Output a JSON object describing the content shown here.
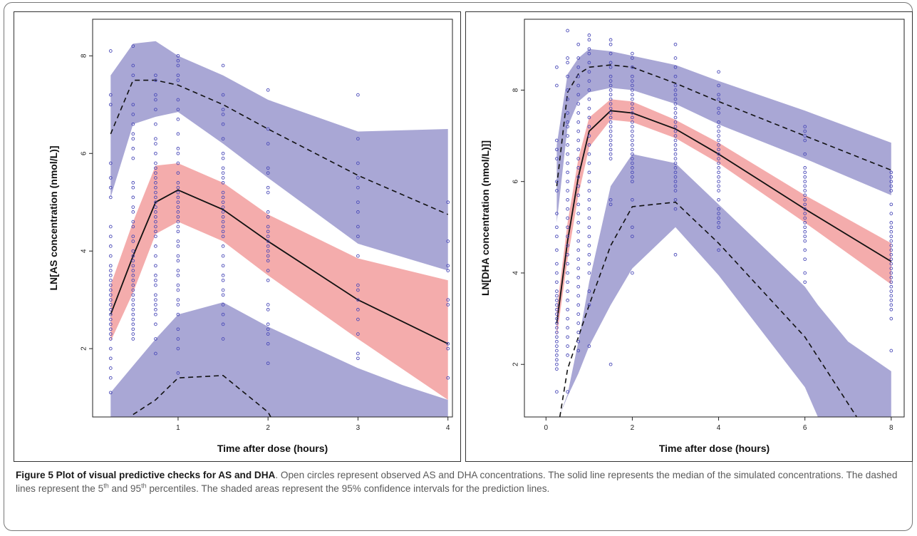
{
  "chart_data": [
    {
      "type": "line",
      "ylabel": "LN[AS concentration (nmol/L)]",
      "xlabel": "Time after dose (hours)",
      "xlim": [
        0.05,
        4.05
      ],
      "ylim": [
        0.6,
        8.75
      ],
      "xticks": [
        "1",
        "2",
        "3",
        "4"
      ],
      "yticks": [
        "2",
        "4",
        "6",
        "8"
      ],
      "grid": false,
      "colors": {
        "outer_ci": "#a9a7d5",
        "inner_ci": "#f4acac",
        "overlap": "#b87bbc",
        "points": "#4a4ab8"
      },
      "time_points": [
        0.25,
        0.5,
        0.75,
        1,
        1.5,
        2,
        3,
        4
      ],
      "series": [
        {
          "role": "median",
          "x": [
            0.25,
            0.5,
            0.75,
            1,
            1.5,
            2,
            3,
            4
          ],
          "y": [
            2.7,
            3.9,
            5.0,
            5.25,
            4.85,
            4.2,
            3.0,
            2.1
          ]
        },
        {
          "role": "p95",
          "x": [
            0.25,
            0.5,
            0.75,
            1,
            1.5,
            2,
            3,
            4
          ],
          "y": [
            6.4,
            7.5,
            7.5,
            7.4,
            7.0,
            6.5,
            5.55,
            4.75
          ]
        },
        {
          "role": "p5",
          "x": [
            0.5,
            0.75,
            1,
            1.5,
            2,
            2.03
          ],
          "y": [
            0.65,
            0.95,
            1.4,
            1.45,
            0.7,
            0.6
          ]
        }
      ],
      "bands": [
        {
          "role": "ci_upper",
          "x": [
            0.25,
            0.5,
            0.75,
            1,
            1.5,
            2,
            3,
            4
          ],
          "low": [
            5.1,
            6.6,
            6.75,
            6.85,
            6.2,
            5.5,
            4.15,
            3.6
          ],
          "high": [
            7.6,
            8.25,
            8.3,
            8.0,
            7.6,
            7.1,
            6.45,
            6.5
          ]
        },
        {
          "role": "ci_median",
          "x": [
            0.25,
            0.5,
            0.75,
            1,
            1.5,
            2,
            3,
            4
          ],
          "low": [
            2.15,
            3.15,
            4.35,
            4.6,
            4.2,
            3.5,
            2.2,
            0.95
          ],
          "high": [
            3.3,
            4.6,
            5.75,
            5.8,
            5.4,
            4.75,
            3.85,
            3.4
          ]
        },
        {
          "role": "ci_lower",
          "x": [
            0.25,
            0.5,
            0.75,
            1,
            1.5,
            2,
            3,
            3.5,
            4
          ],
          "low": [
            0.6,
            0.6,
            0.6,
            0.6,
            0.6,
            0.6,
            0.6,
            0.6,
            0.6
          ],
          "high": [
            1.1,
            1.65,
            2.2,
            2.7,
            2.95,
            2.45,
            1.6,
            1.25,
            0.95
          ]
        }
      ],
      "observed": [
        {
          "x": 0.25,
          "y": [
            8.1,
            7.2,
            7.0,
            5.8,
            5.5,
            5.3,
            5.1,
            4.5,
            4.3,
            4.1,
            3.9,
            3.7,
            3.6,
            3.5,
            3.4,
            3.3,
            3.2,
            3.1,
            3.0,
            2.9,
            2.8,
            2.7,
            2.6,
            2.5,
            2.4,
            2.3,
            2.2,
            2.0,
            1.8,
            1.6,
            1.4,
            1.1
          ]
        },
        {
          "x": 0.5,
          "y": [
            8.2,
            7.8,
            7.6,
            7.0,
            6.8,
            6.6,
            6.4,
            6.3,
            6.1,
            5.9,
            5.4,
            5.3,
            5.1,
            4.9,
            4.8,
            4.6,
            4.5,
            4.3,
            4.2,
            4.0,
            3.9,
            3.8,
            3.7,
            3.6,
            3.5,
            3.4,
            3.3,
            3.2,
            3.1,
            3.0,
            2.9,
            2.8,
            2.7,
            2.6,
            2.5,
            2.4,
            2.3,
            2.2
          ]
        },
        {
          "x": 0.75,
          "y": [
            7.6,
            7.5,
            7.2,
            7.1,
            6.9,
            6.6,
            6.3,
            6.2,
            6.0,
            5.8,
            5.7,
            5.6,
            5.5,
            5.4,
            5.3,
            5.2,
            5.1,
            5.0,
            4.9,
            4.8,
            4.7,
            4.6,
            4.5,
            4.4,
            4.3,
            4.1,
            3.9,
            3.7,
            3.5,
            3.4,
            3.3,
            3.1,
            3.0,
            2.9,
            2.8,
            2.7,
            2.5,
            2.2,
            1.9
          ]
        },
        {
          "x": 1,
          "y": [
            8.0,
            7.9,
            7.8,
            7.6,
            7.5,
            7.1,
            6.9,
            6.7,
            6.4,
            6.1,
            6.0,
            5.8,
            5.6,
            5.4,
            5.3,
            5.2,
            5.1,
            5.0,
            4.9,
            4.8,
            4.7,
            4.6,
            4.5,
            4.4,
            4.2,
            4.1,
            3.9,
            3.8,
            3.6,
            3.5,
            3.3,
            3.2,
            3.0,
            2.9,
            2.7,
            2.4,
            2.2,
            2.0,
            1.5
          ]
        },
        {
          "x": 1.5,
          "y": [
            7.8,
            7.2,
            6.9,
            6.8,
            6.6,
            6.3,
            6.0,
            5.9,
            5.7,
            5.6,
            5.5,
            5.4,
            5.2,
            5.1,
            5.0,
            4.9,
            4.8,
            4.7,
            4.6,
            4.5,
            4.4,
            4.3,
            4.1,
            3.9,
            3.7,
            3.5,
            3.4,
            3.2,
            3.1,
            2.9,
            2.7,
            2.5,
            2.2
          ]
        },
        {
          "x": 2,
          "y": [
            7.3,
            6.5,
            6.2,
            5.7,
            5.6,
            5.3,
            5.2,
            4.8,
            4.7,
            4.5,
            4.4,
            4.3,
            4.2,
            4.1,
            4.0,
            3.9,
            3.8,
            3.6,
            3.4,
            2.9,
            2.8,
            2.5,
            2.4,
            2.3,
            2.1,
            1.7
          ]
        },
        {
          "x": 3,
          "y": [
            7.2,
            6.3,
            5.8,
            5.5,
            5.3,
            5.0,
            4.8,
            4.5,
            4.3,
            3.9,
            3.3,
            3.2,
            3.0,
            2.8,
            2.6,
            2.3,
            1.9,
            1.8
          ]
        },
        {
          "x": 4,
          "y": [
            5.0,
            4.2,
            3.7,
            3.6,
            3.0,
            2.9,
            2.1,
            2.0,
            1.4
          ]
        }
      ]
    },
    {
      "type": "line",
      "ylabel": "LN[DHA concentration (nmol/L)]]",
      "xlabel": "Time after dose (hours)",
      "xlim": [
        -0.5,
        8.3
      ],
      "ylim": [
        0.85,
        9.55
      ],
      "xticks": [
        "0",
        "2",
        "4",
        "6",
        "8"
      ],
      "yticks": [
        "2",
        "4",
        "6",
        "8"
      ],
      "grid": false,
      "colors": {
        "outer_ci": "#a9a7d5",
        "inner_ci": "#f4acac",
        "points": "#4a4ab8"
      },
      "time_points": [
        0.25,
        0.5,
        0.75,
        1,
        1.5,
        2,
        3,
        4,
        6,
        8
      ],
      "series": [
        {
          "role": "median",
          "x": [
            0.25,
            0.5,
            0.75,
            1,
            1.5,
            2,
            3,
            4,
            6,
            8
          ],
          "y": [
            2.9,
            4.7,
            6.1,
            7.1,
            7.55,
            7.5,
            7.15,
            6.6,
            5.4,
            4.25
          ]
        },
        {
          "role": "p95",
          "x": [
            0.25,
            0.5,
            0.75,
            1,
            1.5,
            2,
            3,
            4,
            6,
            8
          ],
          "y": [
            5.9,
            7.95,
            8.35,
            8.5,
            8.55,
            8.5,
            8.15,
            7.75,
            7.0,
            6.25
          ]
        },
        {
          "role": "p5",
          "x": [
            0.32,
            0.5,
            0.75,
            1,
            1.5,
            2,
            3,
            4,
            6,
            7.2
          ],
          "y": [
            0.85,
            1.9,
            2.6,
            3.3,
            4.6,
            5.45,
            5.55,
            4.65,
            2.6,
            0.85
          ]
        }
      ],
      "bands": [
        {
          "role": "ci_upper",
          "x": [
            0.25,
            0.5,
            0.75,
            1,
            1.5,
            2,
            3,
            4,
            6,
            8
          ],
          "low": [
            5.1,
            7.2,
            7.75,
            7.95,
            8.05,
            8.0,
            7.7,
            7.25,
            6.5,
            5.7
          ],
          "high": [
            6.8,
            8.35,
            8.7,
            8.9,
            8.85,
            8.75,
            8.55,
            8.2,
            7.55,
            6.85
          ]
        },
        {
          "role": "ci_median",
          "x": [
            0.25,
            0.5,
            0.75,
            1,
            1.5,
            2,
            3,
            4,
            6,
            8
          ],
          "low": [
            2.6,
            4.3,
            5.7,
            6.75,
            7.35,
            7.3,
            6.95,
            6.4,
            5.1,
            3.75
          ],
          "high": [
            3.2,
            5.1,
            6.5,
            7.4,
            7.8,
            7.75,
            7.35,
            6.85,
            5.7,
            4.65
          ]
        },
        {
          "role": "ci_lower",
          "x": [
            0.3,
            0.5,
            0.75,
            1,
            1.5,
            2,
            3,
            4,
            6,
            6.3,
            7,
            8
          ],
          "low": [
            0.85,
            1.3,
            1.8,
            2.4,
            3.3,
            4.1,
            5.0,
            3.95,
            1.5,
            0.85,
            0.85,
            0.85
          ],
          "high": [
            0.85,
            1.35,
            2.5,
            3.8,
            5.9,
            6.6,
            6.4,
            5.5,
            3.7,
            3.3,
            2.5,
            1.85
          ]
        }
      ],
      "observed": [
        {
          "x": 0.25,
          "y": [
            8.5,
            8.1,
            6.9,
            6.7,
            6.5,
            6.0,
            5.8,
            5.3,
            5.0,
            4.8,
            4.5,
            4.2,
            4.0,
            3.8,
            3.6,
            3.5,
            3.4,
            3.3,
            3.2,
            3.1,
            3.0,
            2.9,
            2.8,
            2.7,
            2.6,
            2.5,
            2.4,
            2.3,
            2.2,
            2.1,
            2.0,
            1.9,
            1.4
          ]
        },
        {
          "x": 0.5,
          "y": [
            9.3,
            8.7,
            8.6,
            8.3,
            8.0,
            7.8,
            7.5,
            7.3,
            7.2,
            7.0,
            6.8,
            6.6,
            6.4,
            6.2,
            6.0,
            5.8,
            5.6,
            5.4,
            5.2,
            5.0,
            4.8,
            4.6,
            4.4,
            4.2,
            4.0,
            3.8,
            3.6,
            3.4,
            3.2,
            3.0,
            2.8,
            2.6,
            2.4,
            2.2,
            1.4
          ]
        },
        {
          "x": 0.75,
          "y": [
            9.0,
            8.7,
            8.5,
            8.3,
            8.1,
            7.9,
            7.7,
            7.5,
            7.3,
            7.1,
            6.9,
            6.7,
            6.5,
            6.3,
            6.1,
            5.9,
            5.7,
            5.5,
            5.3,
            5.1,
            4.9,
            4.7,
            4.5,
            4.3,
            4.1,
            3.9,
            3.7,
            3.5,
            3.3,
            3.1,
            2.9,
            2.7,
            2.5,
            2.3
          ]
        },
        {
          "x": 1,
          "y": [
            9.2,
            9.1,
            8.9,
            8.8,
            8.6,
            8.4,
            8.2,
            8.0,
            7.8,
            7.6,
            7.4,
            7.2,
            7.0,
            6.8,
            6.6,
            6.4,
            6.2,
            6.0,
            5.8,
            5.6,
            5.4,
            5.2,
            5.0,
            4.8,
            4.6,
            4.4,
            4.2,
            4.0,
            3.6,
            3.3,
            2.4
          ]
        },
        {
          "x": 1.5,
          "y": [
            9.1,
            9.0,
            8.8,
            8.6,
            8.5,
            8.3,
            8.2,
            8.1,
            8.0,
            7.9,
            7.8,
            7.7,
            7.6,
            7.5,
            7.4,
            7.3,
            7.2,
            7.1,
            7.0,
            6.9,
            6.8,
            6.7,
            6.6,
            6.5,
            5.6,
            5.5,
            2.0
          ]
        },
        {
          "x": 2,
          "y": [
            8.8,
            8.7,
            8.5,
            8.3,
            8.2,
            8.1,
            8.0,
            7.9,
            7.8,
            7.7,
            7.6,
            7.5,
            7.4,
            7.3,
            7.2,
            7.1,
            7.0,
            6.9,
            6.8,
            6.7,
            6.6,
            6.5,
            6.4,
            6.3,
            6.2,
            6.1,
            6.0,
            5.6,
            5.0,
            4.8,
            4.0
          ]
        },
        {
          "x": 3,
          "y": [
            9.0,
            8.7,
            8.5,
            8.3,
            8.1,
            8.0,
            7.9,
            7.8,
            7.7,
            7.6,
            7.5,
            7.4,
            7.3,
            7.2,
            7.1,
            7.0,
            6.9,
            6.8,
            6.7,
            6.6,
            6.5,
            6.4,
            6.3,
            6.2,
            6.1,
            6.0,
            5.9,
            5.8,
            5.6,
            5.4,
            4.4
          ]
        },
        {
          "x": 4,
          "y": [
            8.4,
            8.1,
            7.9,
            7.8,
            7.6,
            7.5,
            7.3,
            7.2,
            7.1,
            7.0,
            6.9,
            6.8,
            6.7,
            6.6,
            6.5,
            6.4,
            6.3,
            6.2,
            6.1,
            6.0,
            5.9,
            5.8,
            5.6,
            5.4,
            5.3,
            5.2,
            5.1,
            5.0,
            4.5
          ]
        },
        {
          "x": 6,
          "y": [
            7.2,
            7.1,
            7.0,
            6.9,
            6.6,
            6.3,
            6.2,
            6.1,
            6.0,
            5.9,
            5.8,
            5.7,
            5.6,
            5.5,
            5.4,
            5.3,
            5.2,
            5.1,
            5.0,
            4.9,
            4.8,
            4.7,
            4.5,
            4.3,
            4.0,
            3.8
          ]
        },
        {
          "x": 8,
          "y": [
            6.2,
            6.1,
            6.0,
            5.9,
            5.8,
            5.5,
            5.3,
            5.1,
            5.0,
            4.9,
            4.8,
            4.7,
            4.6,
            4.5,
            4.4,
            4.3,
            4.2,
            4.1,
            4.0,
            3.9,
            3.8,
            3.7,
            3.6,
            3.5,
            3.4,
            3.3,
            3.2,
            3.0,
            2.3
          ]
        }
      ]
    }
  ],
  "caption": {
    "label": "Figure 5 Plot of visual predictive checks for AS and DHA",
    "t1": ". Open circles represent observed AS and DHA concentrations. The solid line represents the median of the simulated concentrations. The dashed lines represent the 5",
    "sup1": "th",
    "t2": " and 95",
    "sup2": "th",
    "t3": " percentiles. The shaded areas represent the 95% confidence intervals for the prediction lines."
  }
}
